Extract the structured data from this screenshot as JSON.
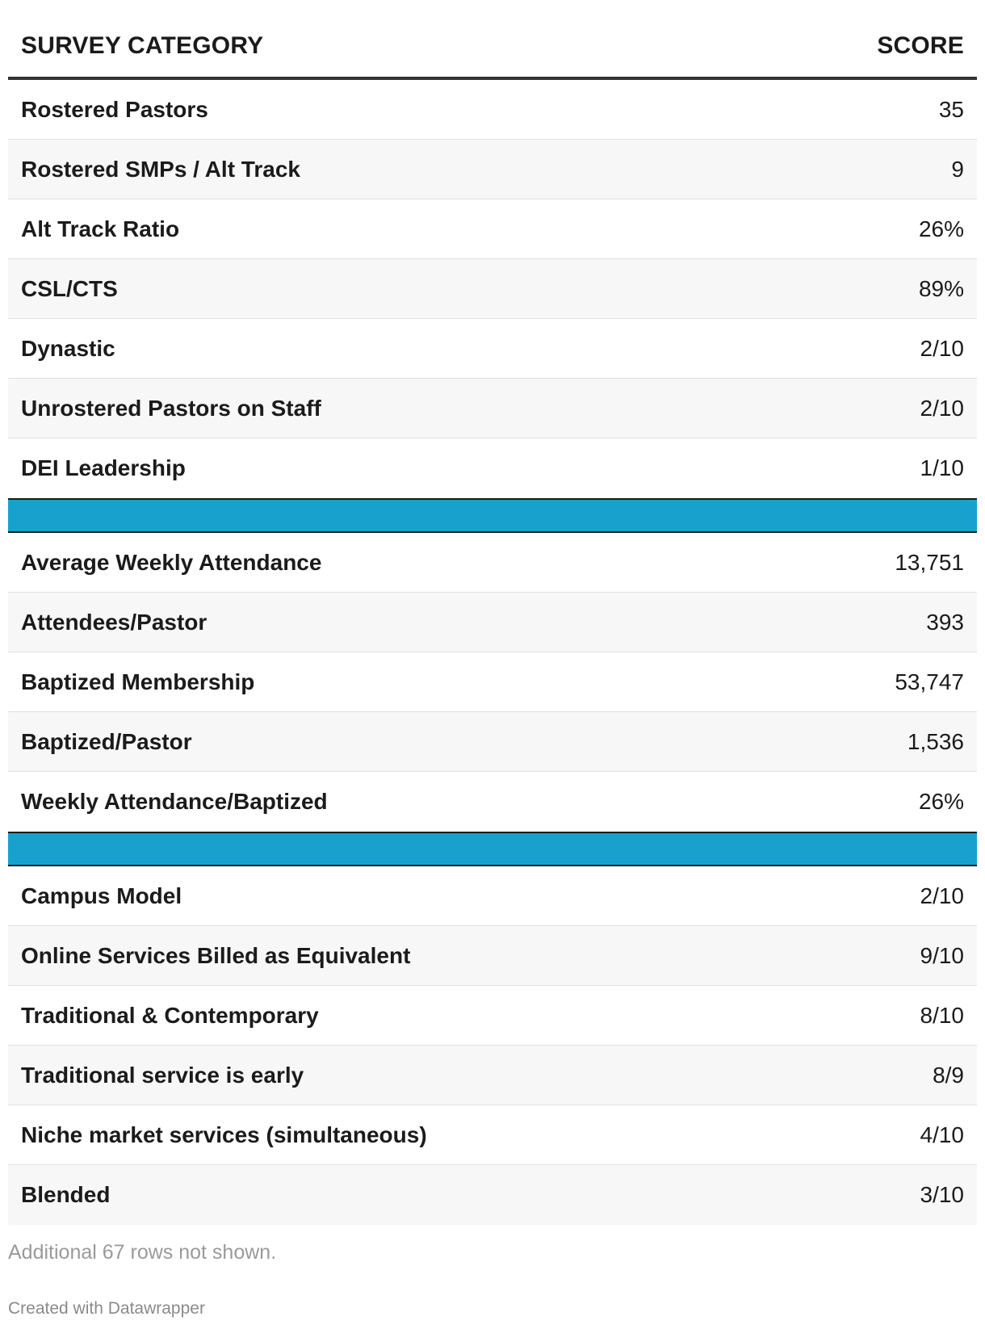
{
  "header": {
    "category_label": "SURVEY CATEGORY",
    "score_label": "SCORE"
  },
  "section1": [
    {
      "category": "Rostered Pastors",
      "score": "35"
    },
    {
      "category": "Rostered SMPs / Alt Track",
      "score": "9"
    },
    {
      "category": "Alt Track Ratio",
      "score": "26%"
    },
    {
      "category": "CSL/CTS",
      "score": "89%"
    },
    {
      "category": "Dynastic",
      "score": "2/10"
    },
    {
      "category": "Unrostered Pastors on Staff",
      "score": "2/10"
    },
    {
      "category": "DEI Leadership",
      "score": "1/10"
    }
  ],
  "section2": [
    {
      "category": "Average Weekly Attendance",
      "score": "13,751"
    },
    {
      "category": "Attendees/Pastor",
      "score": "393"
    },
    {
      "category": "Baptized Membership",
      "score": "53,747"
    },
    {
      "category": "Baptized/Pastor",
      "score": "1,536"
    },
    {
      "category": "Weekly Attendance/Baptized",
      "score": "26%"
    }
  ],
  "section3": [
    {
      "category": "Campus Model",
      "score": "2/10"
    },
    {
      "category": "Online Services Billed as Equivalent",
      "score": "9/10"
    },
    {
      "category": "Traditional & Contemporary",
      "score": "8/10"
    },
    {
      "category": "Traditional service is early",
      "score": "8/9"
    },
    {
      "category": "Niche market services (simultaneous)",
      "score": "4/10"
    },
    {
      "category": "Blended",
      "score": "3/10"
    }
  ],
  "footer": {
    "note": "Additional 67 rows not shown.",
    "credit": "Created with Datawrapper"
  },
  "colors": {
    "divider": "#18a1cd",
    "alt_row": "#f7f7f7"
  },
  "chart_data": {
    "type": "table",
    "columns": [
      "SURVEY CATEGORY",
      "SCORE"
    ],
    "rows": [
      [
        "Rostered Pastors",
        "35"
      ],
      [
        "Rostered SMPs / Alt Track",
        "9"
      ],
      [
        "Alt Track Ratio",
        "26%"
      ],
      [
        "CSL/CTS",
        "89%"
      ],
      [
        "Dynastic",
        "2/10"
      ],
      [
        "Unrostered Pastors on Staff",
        "2/10"
      ],
      [
        "DEI Leadership",
        "1/10"
      ],
      [
        "Average Weekly Attendance",
        "13,751"
      ],
      [
        "Attendees/Pastor",
        "393"
      ],
      [
        "Baptized Membership",
        "53,747"
      ],
      [
        "Baptized/Pastor",
        "1,536"
      ],
      [
        "Weekly Attendance/Baptized",
        "26%"
      ],
      [
        "Campus Model",
        "2/10"
      ],
      [
        "Online Services Billed as Equivalent",
        "9/10"
      ],
      [
        "Traditional & Contemporary",
        "8/10"
      ],
      [
        "Traditional service is early",
        "8/9"
      ],
      [
        "Niche market services (simultaneous)",
        "4/10"
      ],
      [
        "Blended",
        "3/10"
      ]
    ]
  }
}
